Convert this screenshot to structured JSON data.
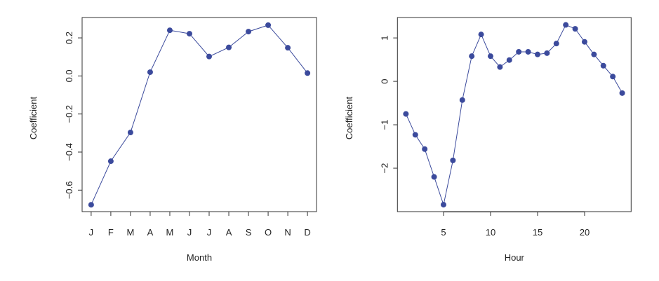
{
  "chart_data": [
    {
      "type": "line",
      "xlabel": "Month",
      "ylabel": "Coefficient",
      "categories": [
        "J",
        "F",
        "M",
        "A",
        "M",
        "J",
        "J",
        "A",
        "S",
        "O",
        "N",
        "D"
      ],
      "values": [
        -0.677,
        -0.448,
        -0.297,
        0.02,
        0.24,
        0.222,
        0.102,
        0.15,
        0.233,
        0.267,
        0.148,
        0.015
      ],
      "yticks": [
        -0.6,
        -0.4,
        -0.2,
        0.0,
        0.2
      ],
      "ytick_labels": [
        "-0.6",
        "-0.4",
        "-0.2",
        "0.0",
        "0.2"
      ],
      "ylim": [
        -0.713,
        0.307
      ],
      "grid": false,
      "color": "#3b4a9c"
    },
    {
      "type": "line",
      "xlabel": "Hour",
      "ylabel": "Coefficient",
      "x": [
        1,
        2,
        3,
        4,
        5,
        6,
        7,
        8,
        9,
        10,
        11,
        12,
        13,
        14,
        15,
        16,
        17,
        18,
        19,
        20,
        21,
        22,
        23,
        24
      ],
      "values": [
        -0.75,
        -1.23,
        -1.56,
        -2.2,
        -2.84,
        -1.82,
        -0.43,
        0.58,
        1.08,
        0.58,
        0.33,
        0.49,
        0.68,
        0.68,
        0.62,
        0.65,
        0.87,
        1.3,
        1.21,
        0.91,
        0.62,
        0.36,
        0.11,
        -0.27
      ],
      "xticks": [
        5,
        10,
        15,
        20
      ],
      "xtick_labels": [
        "5",
        "10",
        "15",
        "20"
      ],
      "yticks": [
        -2,
        -1,
        0,
        1
      ],
      "ytick_labels": [
        "-2",
        "-1",
        "0",
        "1"
      ],
      "xlim": [
        0.1,
        24.95
      ],
      "ylim": [
        -3.0,
        1.47
      ],
      "grid": false,
      "color": "#3b4a9c"
    }
  ]
}
